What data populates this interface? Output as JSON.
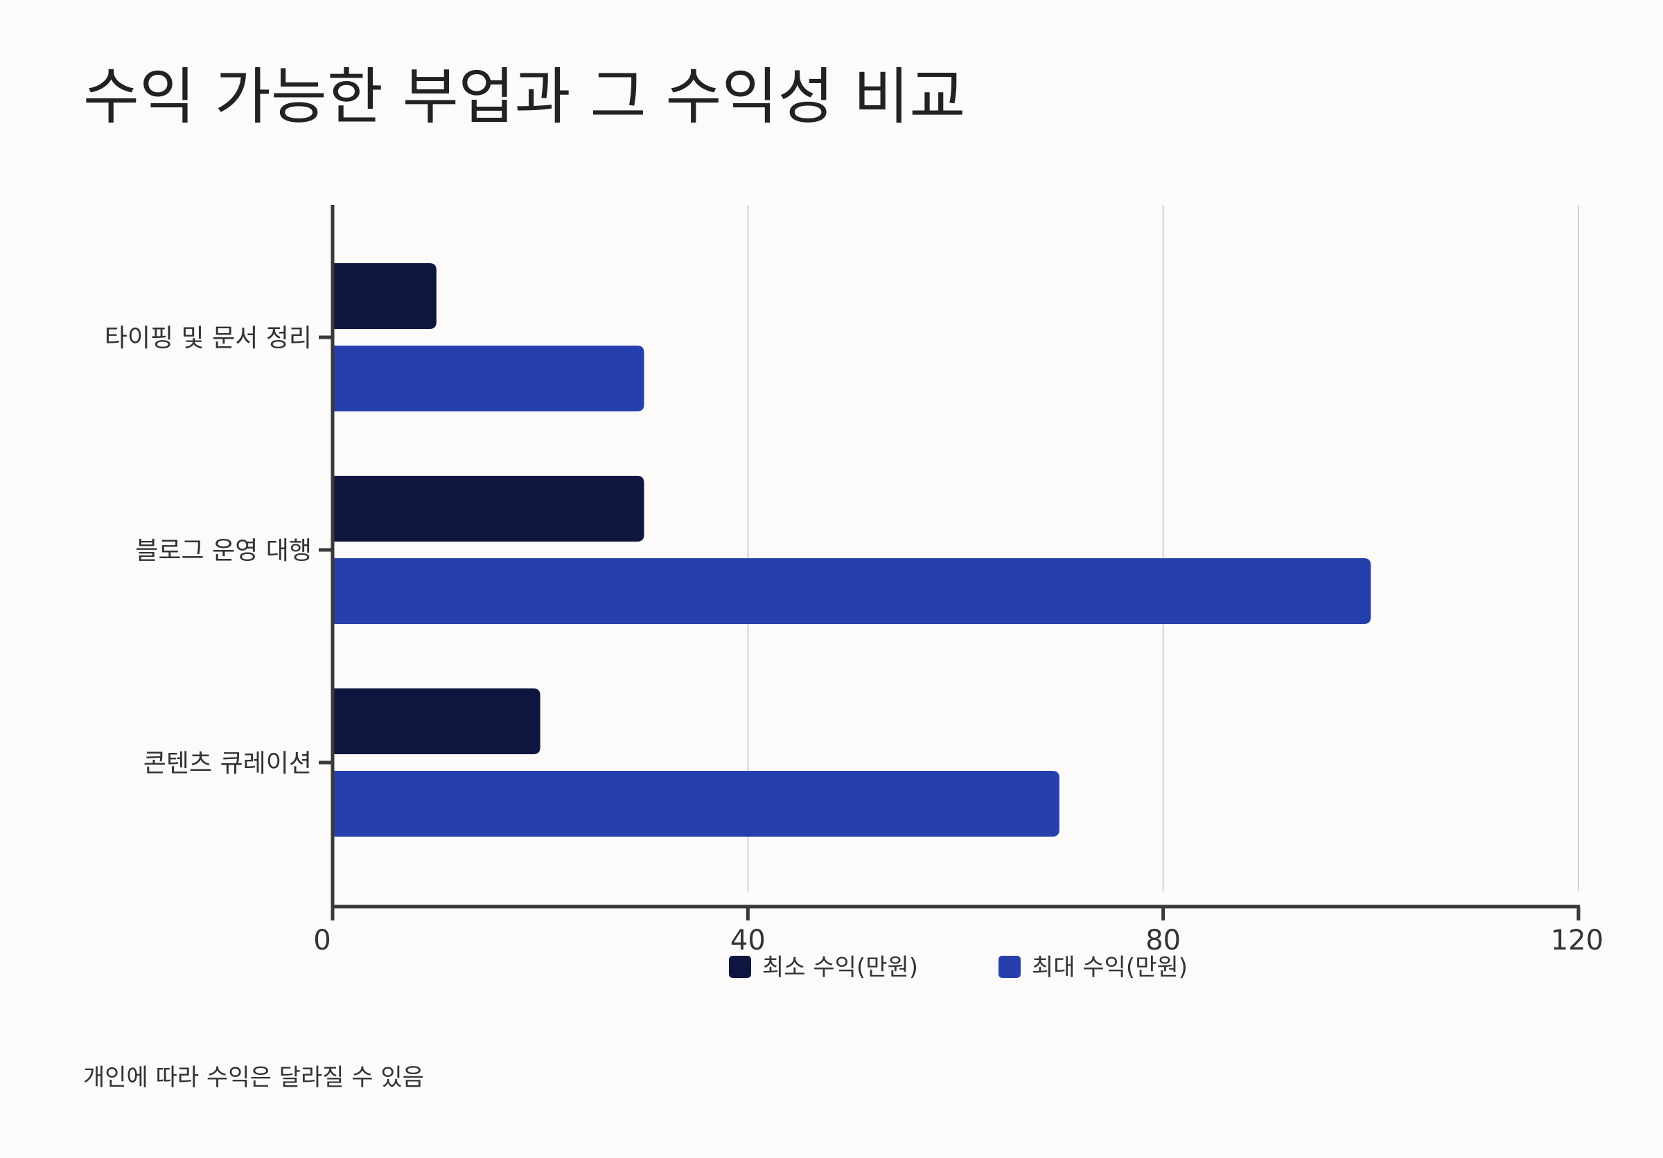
{
  "title": "수익 가능한 부업과 그 수익성 비교",
  "footnote": "개인에 따라 수익은 달라질 수 있음",
  "chart_data": {
    "type": "bar",
    "orientation": "horizontal",
    "categories": [
      "타이핑 및 문서 정리",
      "블로그 운영 대행",
      "콘텐츠 큐레이션"
    ],
    "series": [
      {
        "name": "최소 수익(만원)",
        "values": [
          10,
          30,
          20
        ],
        "color": "#0e1640"
      },
      {
        "name": "최대 수익(만원)",
        "values": [
          30,
          100,
          70
        ],
        "color": "#2540ad"
      }
    ],
    "xlim": [
      0,
      120
    ],
    "xticks": [
      "0",
      "40",
      "80",
      "120"
    ],
    "grid": "vertical",
    "legend_position": "bottom"
  }
}
